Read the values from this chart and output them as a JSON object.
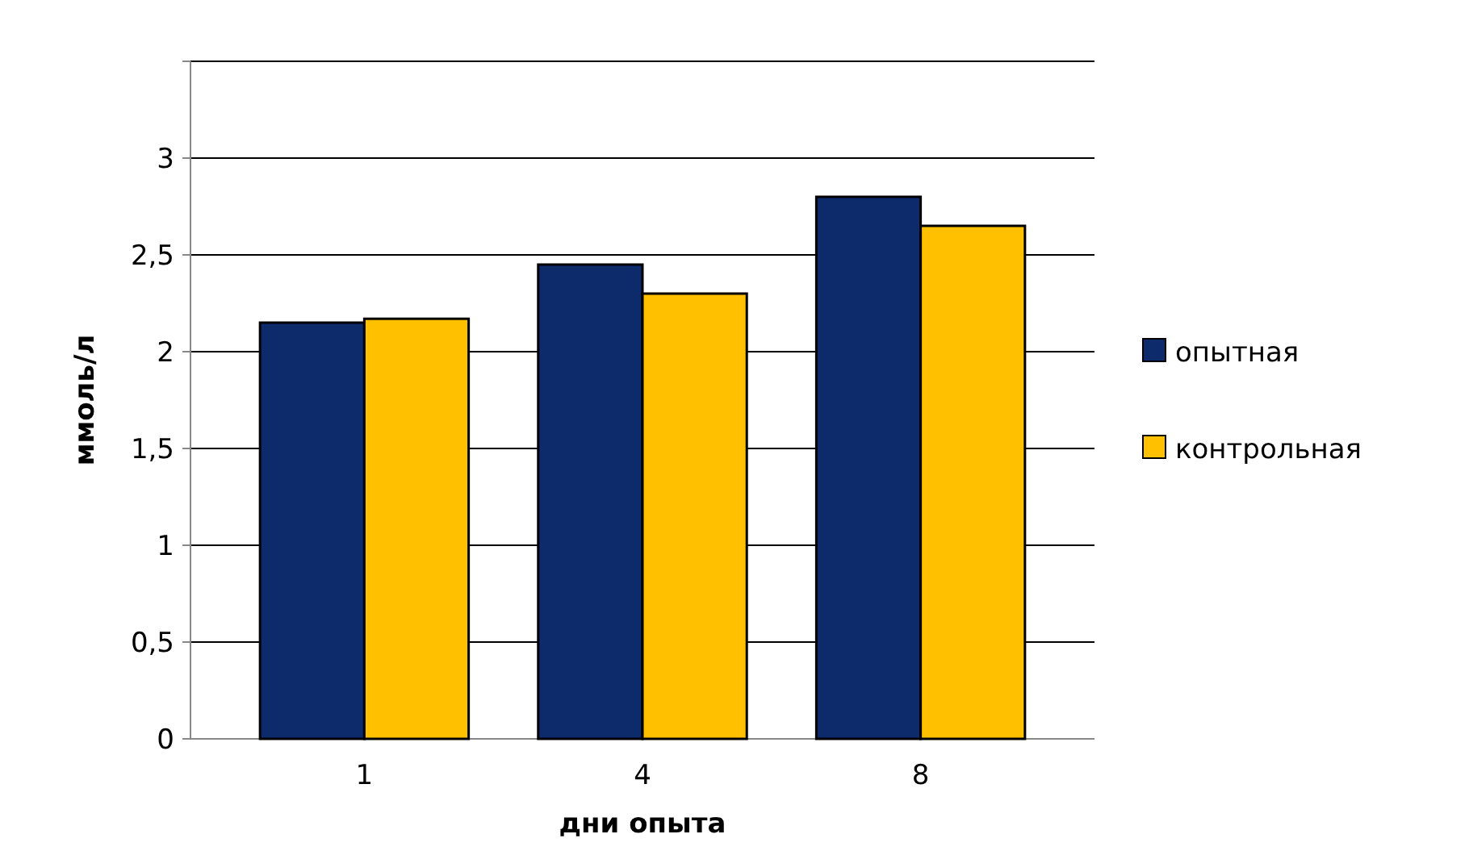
{
  "chart_data": {
    "type": "bar",
    "xlabel": "дни опыта",
    "ylabel": "ммоль/л",
    "categories": [
      "1",
      "4",
      "8"
    ],
    "series": [
      {
        "name": "опытная",
        "color": "#0d2a6b",
        "values": [
          2.15,
          2.45,
          2.8
        ]
      },
      {
        "name": "контрольная",
        "color": "#ffc000",
        "values": [
          2.17,
          2.3,
          2.65
        ]
      }
    ],
    "ylim": [
      0,
      3.5
    ],
    "yticks": [
      0,
      {
        "value": 0.5,
        "label": "0,5"
      },
      1,
      {
        "value": 1.5,
        "label": "1,5"
      },
      2,
      {
        "value": 2.5,
        "label": "2,5"
      },
      3,
      {
        "value": 3.5,
        "label": null
      }
    ],
    "grid": true,
    "legend": "right"
  }
}
